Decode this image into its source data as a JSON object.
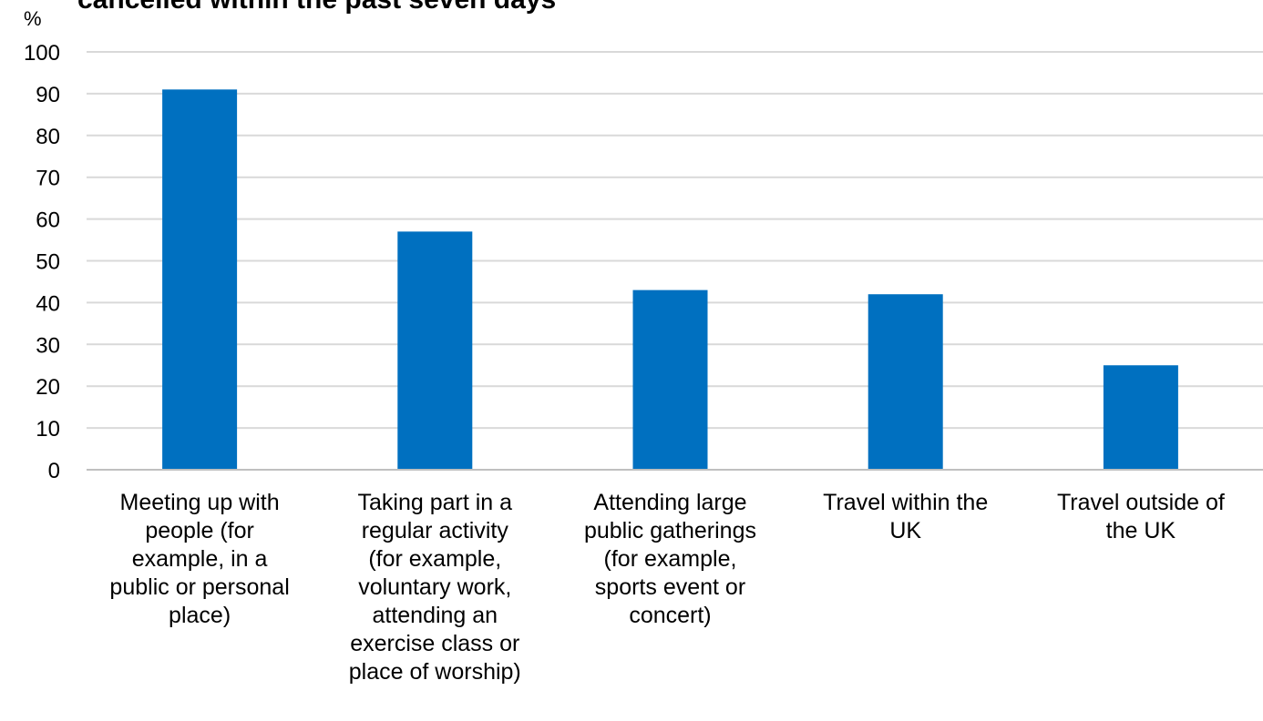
{
  "chart_data": {
    "type": "bar",
    "title": "cancelled within the past seven days",
    "ylabel": "%",
    "xlabel": "",
    "ylim": [
      0,
      100
    ],
    "yticks": [
      0,
      10,
      20,
      30,
      40,
      50,
      60,
      70,
      80,
      90,
      100
    ],
    "grid": true,
    "legend": "none",
    "bar_color": "#0070C0",
    "grid_color": "#D9D9D9",
    "axis_color": "#BFBFBF",
    "categories": [
      "Meeting up with people (for example, in a public or personal place)",
      "Taking part in a regular activity (for example, voluntary work, attending an exercise class or place of worship)",
      "Attending large public gatherings (for example, sports event or concert)",
      "Travel within the UK",
      "Travel outside of the UK"
    ],
    "category_label_lines": [
      [
        "Meeting up with",
        "people (for",
        "example, in a",
        "public or personal",
        "place)"
      ],
      [
        "Taking part in a",
        "regular activity",
        "(for example,",
        "voluntary work,",
        "attending an",
        "exercise class or",
        "place of worship)"
      ],
      [
        "Attending large",
        "public gatherings",
        "(for example,",
        "sports event or",
        "concert)"
      ],
      [
        "Travel within the",
        "UK"
      ],
      [
        "Travel outside of",
        "the UK"
      ]
    ],
    "values": [
      91,
      57,
      43,
      42,
      25
    ]
  }
}
